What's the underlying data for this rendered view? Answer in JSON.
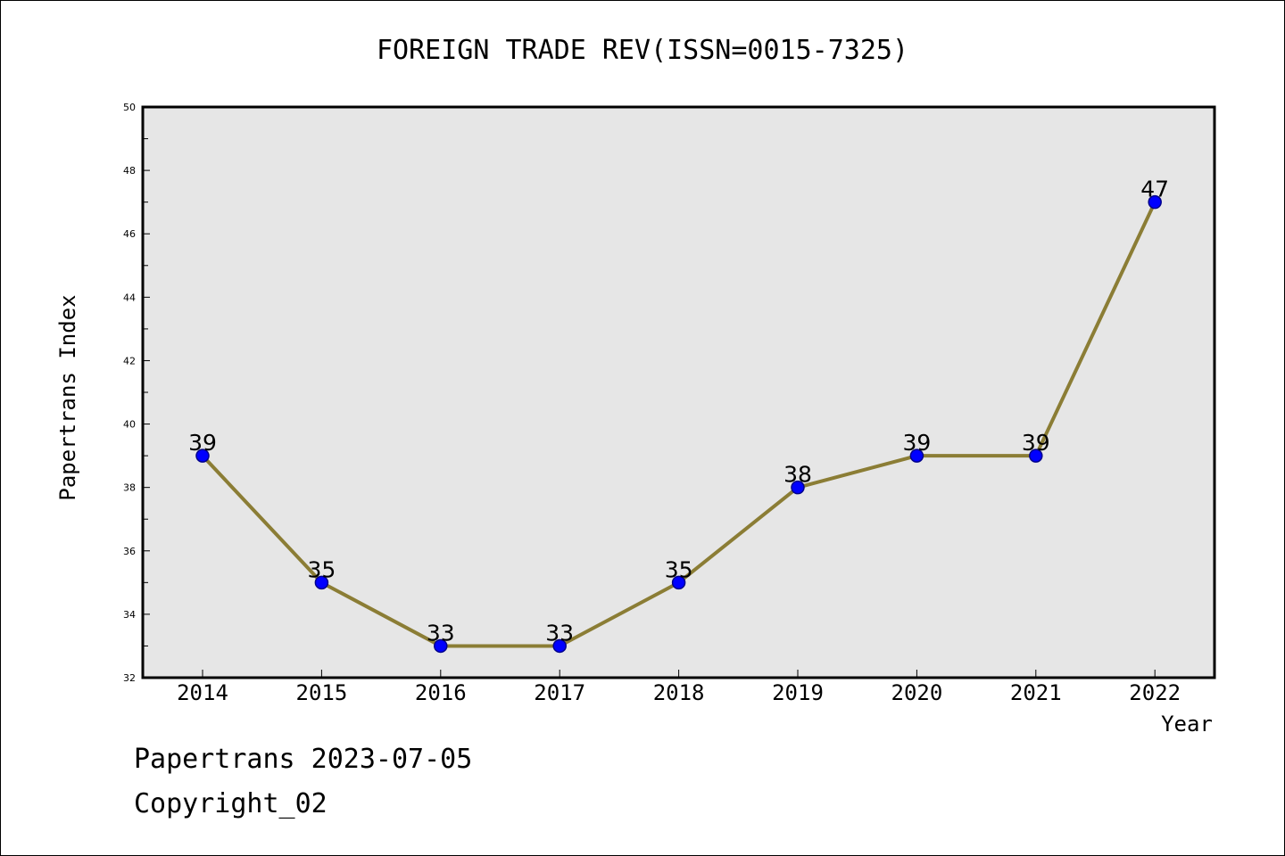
{
  "chart_data": {
    "type": "line",
    "title": "FOREIGN TRADE REV(ISSN=0015-7325)",
    "xlabel": "Year",
    "ylabel": "Papertrans Index",
    "categories": [
      "2014",
      "2015",
      "2016",
      "2017",
      "2018",
      "2019",
      "2020",
      "2021",
      "2022"
    ],
    "series": [
      {
        "values": [
          39,
          35,
          33,
          33,
          35,
          38,
          39,
          39,
          47
        ]
      }
    ],
    "data_labels": [
      "39",
      "35",
      "33",
      "33",
      "35",
      "38",
      "39",
      "39",
      "47"
    ],
    "ylim": [
      32,
      50
    ],
    "yticks": [
      "32",
      "34",
      "36",
      "38",
      "40",
      "42",
      "44",
      "46",
      "48",
      "50"
    ],
    "grid": false,
    "colors": {
      "plot_background": "#e6e6e6",
      "line": "#8b7d35",
      "marker_fill": "#0000ff",
      "marker_edge": "#00008b"
    }
  },
  "footer": {
    "line1": "Papertrans 2023-07-05",
    "line2": "Copyright_02"
  }
}
